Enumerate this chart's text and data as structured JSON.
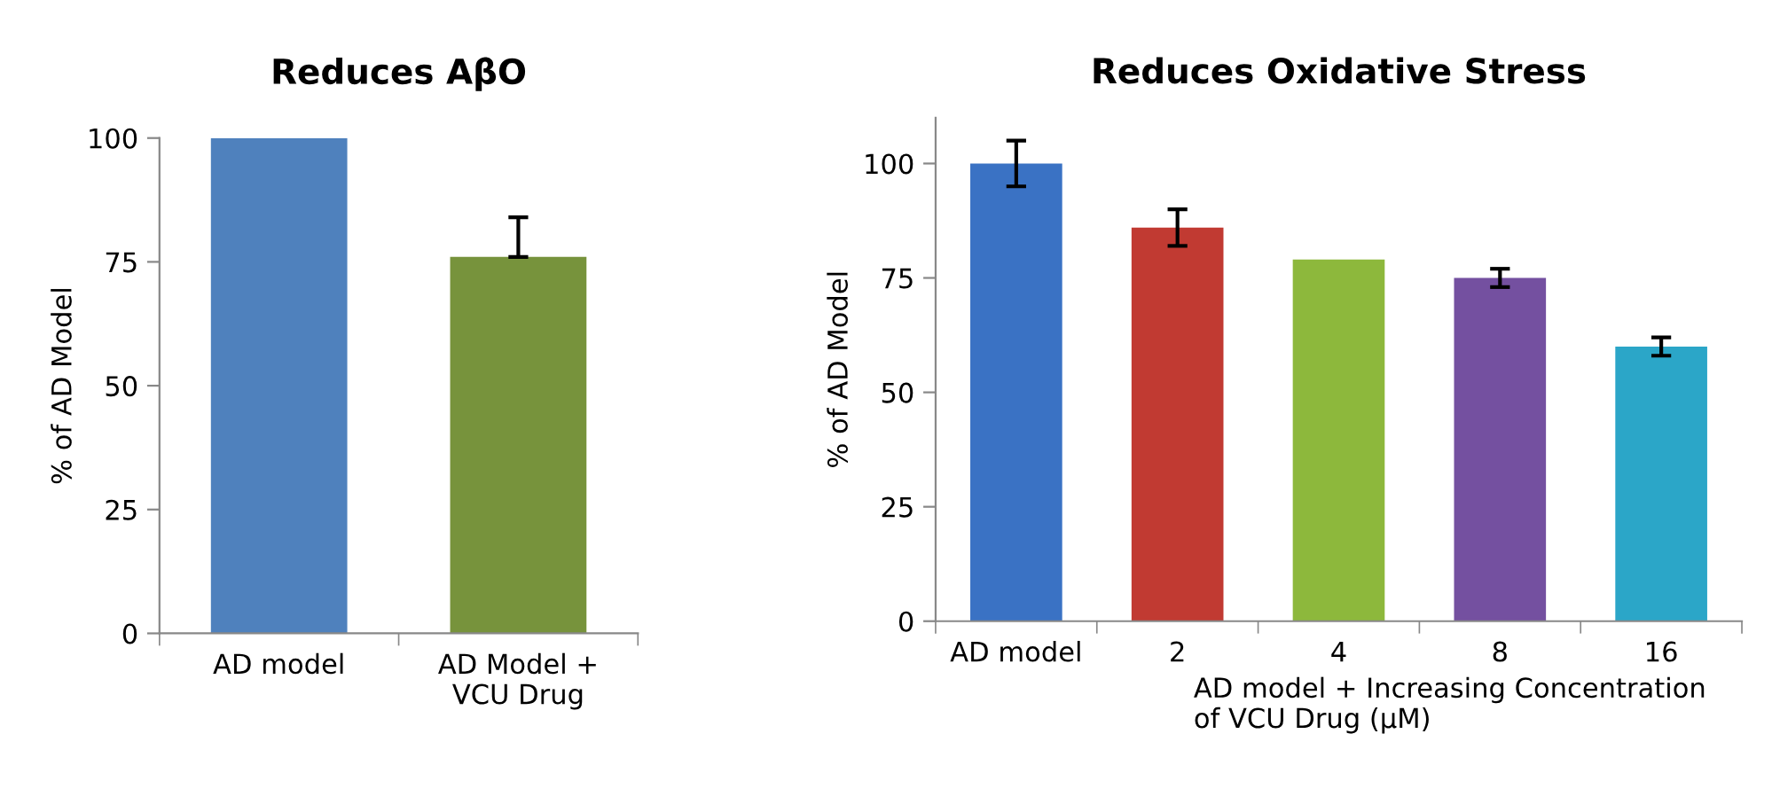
{
  "chart_data": [
    {
      "type": "bar",
      "title": "Reduces AβO",
      "ylabel": "% of AD Model",
      "categories": [
        "AD model",
        "AD Model +\nVCU Drug"
      ],
      "values": [
        100,
        76
      ],
      "colors": [
        "#4f81bd",
        "#77933c"
      ],
      "errors": [
        null,
        [
          76,
          84
        ]
      ],
      "ylim": [
        0,
        100
      ],
      "yticks": [
        0,
        25,
        50,
        75,
        100
      ],
      "grid": false,
      "legend": false
    },
    {
      "type": "bar",
      "title": "Reduces Oxidative Stress",
      "ylabel": "% of AD Model",
      "xlabel": "AD model + Increasing Concentration\nof VCU Drug (μM)",
      "categories": [
        "AD model",
        "2",
        "4",
        "8",
        "16"
      ],
      "values": [
        100,
        86,
        79,
        75,
        60
      ],
      "colors": [
        "#3a72c4",
        "#c13a32",
        "#8db83c",
        "#7450a0",
        "#2ba6c8"
      ],
      "errors": [
        [
          95,
          105
        ],
        [
          82,
          90
        ],
        null,
        [
          73,
          77
        ],
        [
          58,
          62
        ]
      ],
      "ylim": [
        0,
        110
      ],
      "yticks": [
        0,
        25,
        50,
        75,
        100
      ],
      "grid": false,
      "legend": false
    }
  ]
}
